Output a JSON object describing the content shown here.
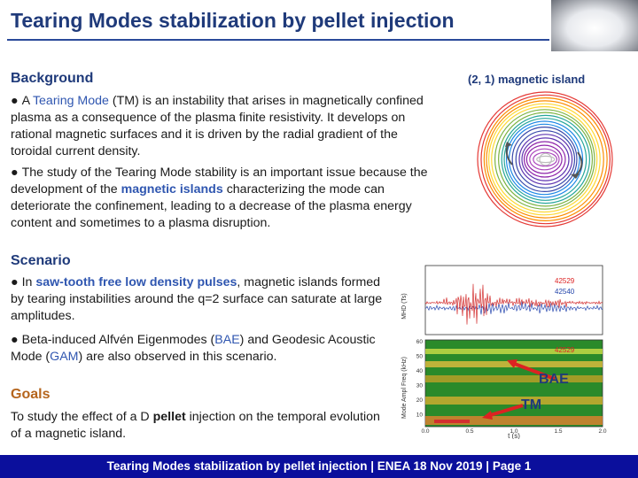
{
  "title": "Tearing Modes stabilization by pellet injection",
  "background": {
    "heading": "Background",
    "p1": [
      {
        "t": "A "
      },
      {
        "t": "Tearing Mode",
        "c": "kw"
      },
      {
        "t": " (TM) is an instability that arises in magnetically confined plasma as a consequence of the plasma finite resistivity. It develops on rational magnetic surfaces and it is driven by the radial gradient of the toroidal current density."
      }
    ],
    "p2": [
      {
        "t": "The study of the Tearing Mode stability is an important issue because the development of the "
      },
      {
        "t": "magnetic islands",
        "c": "kwb"
      },
      {
        "t": " characterizing the mode can deteriorate the confinement, leading to a decrease of the plasma energy content and sometimes to a plasma disruption."
      }
    ]
  },
  "island_figure": {
    "label": "(2, 1) magnetic island"
  },
  "scenario": {
    "heading": "Scenario",
    "p1": [
      {
        "t": "In "
      },
      {
        "t": "saw-tooth free low density pulses",
        "c": "kwb"
      },
      {
        "t": ", magnetic islands formed by tearing instabilities around the q=2 surface can saturate at large amplitudes."
      }
    ],
    "p2": [
      {
        "t": "Beta-induced Alfvén Eigenmodes ("
      },
      {
        "t": "BAE",
        "c": "kw"
      },
      {
        "t": ") and Geodesic Acoustic Mode ("
      },
      {
        "t": "GAM",
        "c": "kw"
      },
      {
        "t": ") are also observed in this scenario."
      }
    ]
  },
  "goals": {
    "heading": "Goals",
    "p1": [
      {
        "t": "To study the effect of a D "
      },
      {
        "t": "pellet",
        "c": "b"
      },
      {
        "t": " injection on the temporal evolution of a magnetic island."
      }
    ]
  },
  "plot": {
    "top_ylabel": "MHD (Ts)",
    "bottom_ylabel": "Mode Ampl Freq (kHz)",
    "legend_top": [
      "42529",
      "42540"
    ],
    "legend_bottom": "42529",
    "bottom_yticks": [
      "60",
      "50",
      "40",
      "30",
      "20",
      "10"
    ],
    "xticks": [
      "0.0",
      "0.5",
      "1.0",
      "1.5",
      "2.0"
    ],
    "xlabel": "t (s)",
    "annotations": {
      "bae": "BAE",
      "tm": "TM"
    }
  },
  "footer": "Tearing Modes stabilization by pellet injection | ENEA 18 Nov 2019 | Page 1",
  "colors": {
    "title": "#1f3a7a",
    "keyword": "#2f56b0",
    "footer_bg": "#0b0f9c"
  }
}
